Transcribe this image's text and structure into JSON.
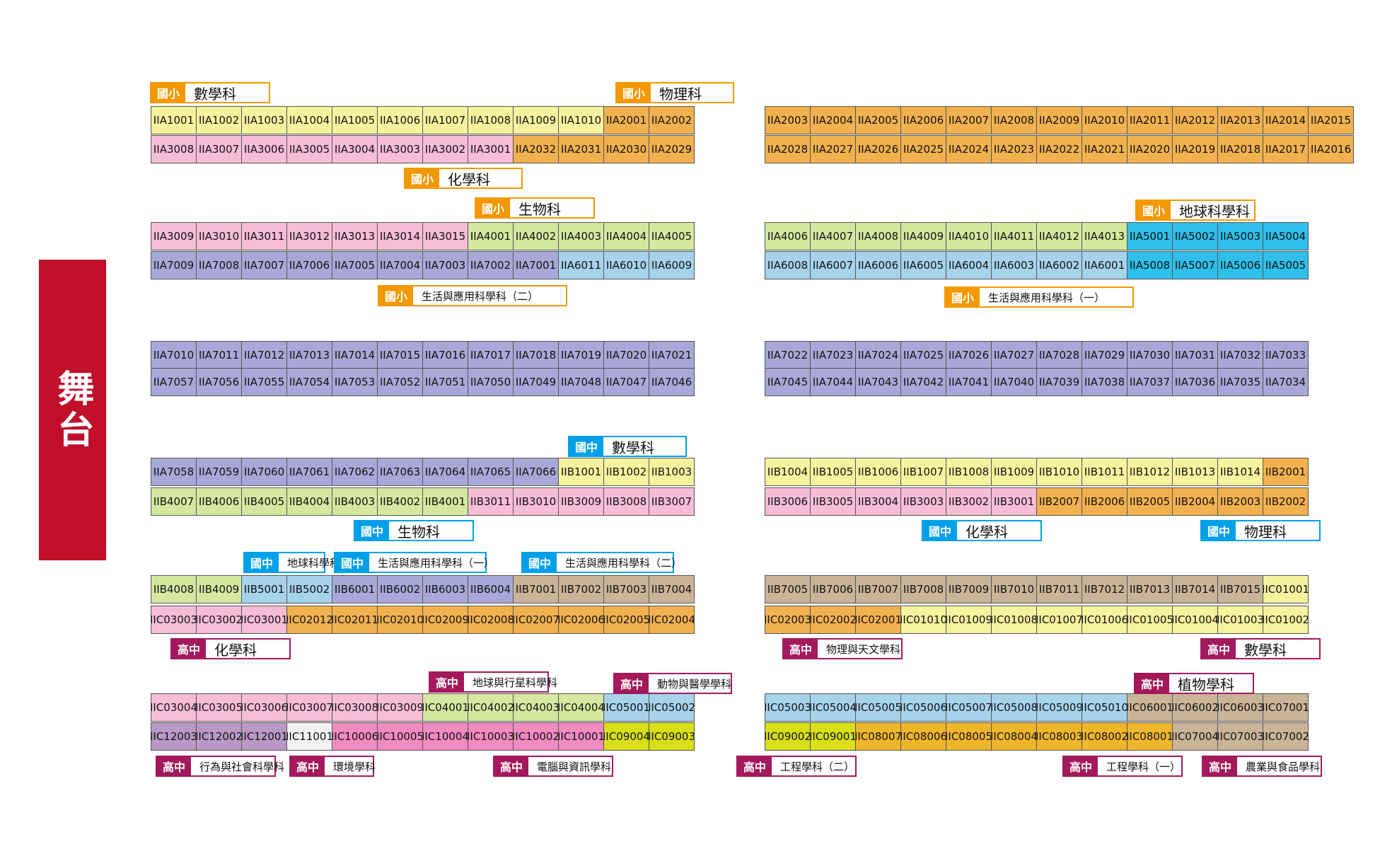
{
  "stage_label": "舞台",
  "legend_colors": {
    "國小": "#f39800",
    "國中": "#00a0e9",
    "高中": "#a3195b"
  },
  "colors": {
    "yellow": "#f7f29e",
    "pink": "#f6bdd5",
    "orange": "#f2b14f",
    "green": "#d5e8a0",
    "skyblue": "#a6d2ec",
    "cyan": "#2ebfea",
    "periwinkle": "#a8a8d8",
    "tan": "#c9b498",
    "mauve": "#b998c6",
    "white": "#f2f2f2",
    "rose": "#f08ac0",
    "lime": "#d9df16",
    "gold": "#efb62b"
  },
  "rows": [
    {
      "cells": [
        "IIA1001:yellow",
        "IIA1002:yellow",
        "IIA1003:yellow",
        "IIA1004:yellow",
        "IIA1005:yellow",
        "IIA1006:yellow",
        "IIA1007:yellow",
        "IIA1008:yellow",
        "IIA1009:yellow",
        "IIA1010:yellow",
        "IIA2001:orange",
        "IIA2002:orange"
      ]
    },
    {
      "cells": [
        "IIA3008:pink",
        "IIA3007:pink",
        "IIA3006:pink",
        "IIA3005:pink",
        "IIA3004:pink",
        "IIA3003:pink",
        "IIA3002:pink",
        "IIA3001:pink",
        "IIA2032:orange",
        "IIA2031:orange",
        "IIA2030:orange",
        "IIA2029:orange"
      ]
    },
    {
      "cells": [
        "IIA2003:orange",
        "IIA2004:orange",
        "IIA2005:orange",
        "IIA2006:orange",
        "IIA2007:orange",
        "IIA2008:orange",
        "IIA2009:orange",
        "IIA2010:orange",
        "IIA2011:orange",
        "IIA2012:orange",
        "IIA2013:orange",
        "IIA2014:orange",
        "IIA2015:orange"
      ]
    },
    {
      "cells": [
        "IIA2028:orange",
        "IIA2027:orange",
        "IIA2026:orange",
        "IIA2025:orange",
        "IIA2024:orange",
        "IIA2023:orange",
        "IIA2022:orange",
        "IIA2021:orange",
        "IIA2020:orange",
        "IIA2019:orange",
        "IIA2018:orange",
        "IIA2017:orange",
        "IIA2016:orange"
      ]
    },
    {
      "cells": [
        "IIA3009:pink",
        "IIA3010:pink",
        "IIA3011:pink",
        "IIA3012:pink",
        "IIA3013:pink",
        "IIA3014:pink",
        "IIA3015:pink",
        "IIA4001:green",
        "IIA4002:green",
        "IIA4003:green",
        "IIA4004:green",
        "IIA4005:green"
      ]
    },
    {
      "cells": [
        "IIA7009:periwinkle",
        "IIA7008:periwinkle",
        "IIA7007:periwinkle",
        "IIA7006:periwinkle",
        "IIA7005:periwinkle",
        "IIA7004:periwinkle",
        "IIA7003:periwinkle",
        "IIA7002:periwinkle",
        "IIA7001:periwinkle",
        "IIA6011:skyblue",
        "IIA6010:skyblue",
        "IIA6009:skyblue"
      ]
    },
    {
      "cells": [
        "IIA4006:green",
        "IIA4007:green",
        "IIA4008:green",
        "IIA4009:green",
        "IIA4010:green",
        "IIA4011:green",
        "IIA4012:green",
        "IIA4013:green",
        "IIA5001:cyan",
        "IIA5002:cyan",
        "IIA5003:cyan",
        "IIA5004:cyan"
      ]
    },
    {
      "cells": [
        "IIA6008:skyblue",
        "IIA6007:skyblue",
        "IIA6006:skyblue",
        "IIA6005:skyblue",
        "IIA6004:skyblue",
        "IIA6003:skyblue",
        "IIA6002:skyblue",
        "IIA6001:skyblue",
        "IIA5008:cyan",
        "IIA5007:cyan",
        "IIA5006:cyan",
        "IIA5005:cyan"
      ]
    },
    {
      "cells": [
        "IIA7010:periwinkle",
        "IIA7011:periwinkle",
        "IIA7012:periwinkle",
        "IIA7013:periwinkle",
        "IIA7014:periwinkle",
        "IIA7015:periwinkle",
        "IIA7016:periwinkle",
        "IIA7017:periwinkle",
        "IIA7018:periwinkle",
        "IIA7019:periwinkle",
        "IIA7020:periwinkle",
        "IIA7021:periwinkle"
      ]
    },
    {
      "cells": [
        "IIA7057:periwinkle",
        "IIA7056:periwinkle",
        "IIA7055:periwinkle",
        "IIA7054:periwinkle",
        "IIA7053:periwinkle",
        "IIA7052:periwinkle",
        "IIA7051:periwinkle",
        "IIA7050:periwinkle",
        "IIA7049:periwinkle",
        "IIA7048:periwinkle",
        "IIA7047:periwinkle",
        "IIA7046:periwinkle"
      ]
    },
    {
      "cells": [
        "IIA7022:periwinkle",
        "IIA7023:periwinkle",
        "IIA7024:periwinkle",
        "IIA7025:periwinkle",
        "IIA7026:periwinkle",
        "IIA7027:periwinkle",
        "IIA7028:periwinkle",
        "IIA7029:periwinkle",
        "IIA7030:periwinkle",
        "IIA7031:periwinkle",
        "IIA7032:periwinkle",
        "IIA7033:periwinkle"
      ]
    },
    {
      "cells": [
        "IIA7045:periwinkle",
        "IIA7044:periwinkle",
        "IIA7043:periwinkle",
        "IIA7042:periwinkle",
        "IIA7041:periwinkle",
        "IIA7040:periwinkle",
        "IIA7039:periwinkle",
        "IIA7038:periwinkle",
        "IIA7037:periwinkle",
        "IIA7036:periwinkle",
        "IIA7035:periwinkle",
        "IIA7034:periwinkle"
      ]
    },
    {
      "cells": [
        "IIA7058:periwinkle",
        "IIA7059:periwinkle",
        "IIA7060:periwinkle",
        "IIA7061:periwinkle",
        "IIA7062:periwinkle",
        "IIA7063:periwinkle",
        "IIA7064:periwinkle",
        "IIA7065:periwinkle",
        "IIA7066:periwinkle",
        "IIB1001:yellow",
        "IIB1002:yellow",
        "IIB1003:yellow"
      ]
    },
    {
      "cells": [
        "IIB4007:green",
        "IIB4006:green",
        "IIB4005:green",
        "IIB4004:green",
        "IIB4003:green",
        "IIB4002:green",
        "IIB4001:green",
        "IIB3011:pink",
        "IIB3010:pink",
        "IIB3009:pink",
        "IIB3008:pink",
        "IIB3007:pink"
      ]
    },
    {
      "cells": [
        "IIB1004:yellow",
        "IIB1005:yellow",
        "IIB1006:yellow",
        "IIB1007:yellow",
        "IIB1008:yellow",
        "IIB1009:yellow",
        "IIB1010:yellow",
        "IIB1011:yellow",
        "IIB1012:yellow",
        "IIB1013:yellow",
        "IIB1014:yellow",
        "IIB2001:orange"
      ]
    },
    {
      "cells": [
        "IIB3006:pink",
        "IIB3005:pink",
        "IIB3004:pink",
        "IIB3003:pink",
        "IIB3002:pink",
        "IIB3001:pink",
        "IIB2007:orange",
        "IIB2006:orange",
        "IIB2005:orange",
        "IIB2004:orange",
        "IIB2003:orange",
        "IIB2002:orange"
      ]
    },
    {
      "cells": [
        "IIB4008:green",
        "IIB4009:green",
        "IIB5001:skyblue",
        "IIB5002:skyblue",
        "IIB6001:periwinkle",
        "IIB6002:periwinkle",
        "IIB6003:periwinkle",
        "IIB6004:periwinkle",
        "IIB7001:tan",
        "IIB7002:tan",
        "IIB7003:tan",
        "IIB7004:tan"
      ]
    },
    {
      "cells": [
        "IIC03003:pink",
        "IIC03002:pink",
        "IIC03001:pink",
        "IIC02012:orange",
        "IIC02011:orange",
        "IIC02010:orange",
        "IIC02009:orange",
        "IIC02008:orange",
        "IIC02007:orange",
        "IIC02006:orange",
        "IIC02005:orange",
        "IIC02004:orange"
      ]
    },
    {
      "cells": [
        "IIB7005:tan",
        "IIB7006:tan",
        "IIB7007:tan",
        "IIB7008:tan",
        "IIB7009:tan",
        "IIB7010:tan",
        "IIB7011:tan",
        "IIB7012:tan",
        "IIB7013:tan",
        "IIB7014:tan",
        "IIB7015:tan",
        "IIC01001:yellow"
      ]
    },
    {
      "cells": [
        "IIC02003:orange",
        "IIC02002:orange",
        "IIC02001:orange",
        "IIC01010:yellow",
        "IIC01009:yellow",
        "IIC01008:yellow",
        "IIC01007:yellow",
        "IIC01006:yellow",
        "IIC01005:yellow",
        "IIC01004:yellow",
        "IIC01003:yellow",
        "IIC01002:yellow"
      ]
    },
    {
      "cells": [
        "IIC03004:pink",
        "IIC03005:pink",
        "IIC03006:pink",
        "IIC03007:pink",
        "IIC03008:pink",
        "IIC03009:pink",
        "IIC04001:green",
        "IIC04002:green",
        "IIC04003:green",
        "IIC04004:green",
        "IIC05001:skyblue",
        "IIC05002:skyblue"
      ]
    },
    {
      "cells": [
        "IIC12003:mauve",
        "IIC12002:mauve",
        "IIC12001:mauve",
        "IIC11001:white",
        "IIC10006:rose",
        "IIC10005:rose",
        "IIC10004:rose",
        "IIC10003:rose",
        "IIC10002:rose",
        "IIC10001:rose",
        "IIC09004:lime",
        "IIC09003:lime"
      ]
    },
    {
      "cells": [
        "IIC05003:skyblue",
        "IIC05004:skyblue",
        "IIC05005:skyblue",
        "IIC05006:skyblue",
        "IIC05007:skyblue",
        "IIC05008:skyblue",
        "IIC05009:skyblue",
        "IIC05010:skyblue",
        "IIC06001:tan",
        "IIC06002:tan",
        "IIC06003:tan",
        "IIC07001:tan"
      ]
    },
    {
      "cells": [
        "IIC09002:lime",
        "IIC09001:lime",
        "IIC08007:gold",
        "IIC08006:gold",
        "IIC08005:gold",
        "IIC08004:gold",
        "IIC08003:gold",
        "IIC08002:gold",
        "IIC08001:gold",
        "IIC07004:tan",
        "IIC07003:tan",
        "IIC07002:tan"
      ]
    }
  ],
  "labels": [
    {
      "level": "國小",
      "name": "數學科"
    },
    {
      "level": "國小",
      "name": "物理科"
    },
    {
      "level": "國小",
      "name": "化學科"
    },
    {
      "level": "國小",
      "name": "生物科"
    },
    {
      "level": "國小",
      "name": "地球科學科"
    },
    {
      "level": "國小",
      "name": "生活與應用科學科（二）"
    },
    {
      "level": "國小",
      "name": "生活與應用科學科（一）"
    },
    {
      "level": "國中",
      "name": "數學科"
    },
    {
      "level": "國中",
      "name": "生物科"
    },
    {
      "level": "國中",
      "name": "化學科"
    },
    {
      "level": "國中",
      "name": "物理科"
    },
    {
      "level": "國中",
      "name": "地球科學科"
    },
    {
      "level": "國中",
      "name": "生活與應用科學科（一）"
    },
    {
      "level": "國中",
      "name": "生活與應用科學科（二）"
    },
    {
      "level": "高中",
      "name": "化學科"
    },
    {
      "level": "高中",
      "name": "物理與天文學科"
    },
    {
      "level": "高中",
      "name": "數學科"
    },
    {
      "level": "高中",
      "name": "地球與行星科學科"
    },
    {
      "level": "高中",
      "name": "動物與醫學學科"
    },
    {
      "level": "高中",
      "name": "植物學科"
    },
    {
      "level": "高中",
      "name": "行為與社會科學科"
    },
    {
      "level": "高中",
      "name": "環境學科"
    },
    {
      "level": "高中",
      "name": "電腦與資訊學科"
    },
    {
      "level": "高中",
      "name": "工程學科（二）"
    },
    {
      "level": "高中",
      "name": "工程學科（一）"
    },
    {
      "level": "高中",
      "name": "農業與食品學科"
    }
  ]
}
